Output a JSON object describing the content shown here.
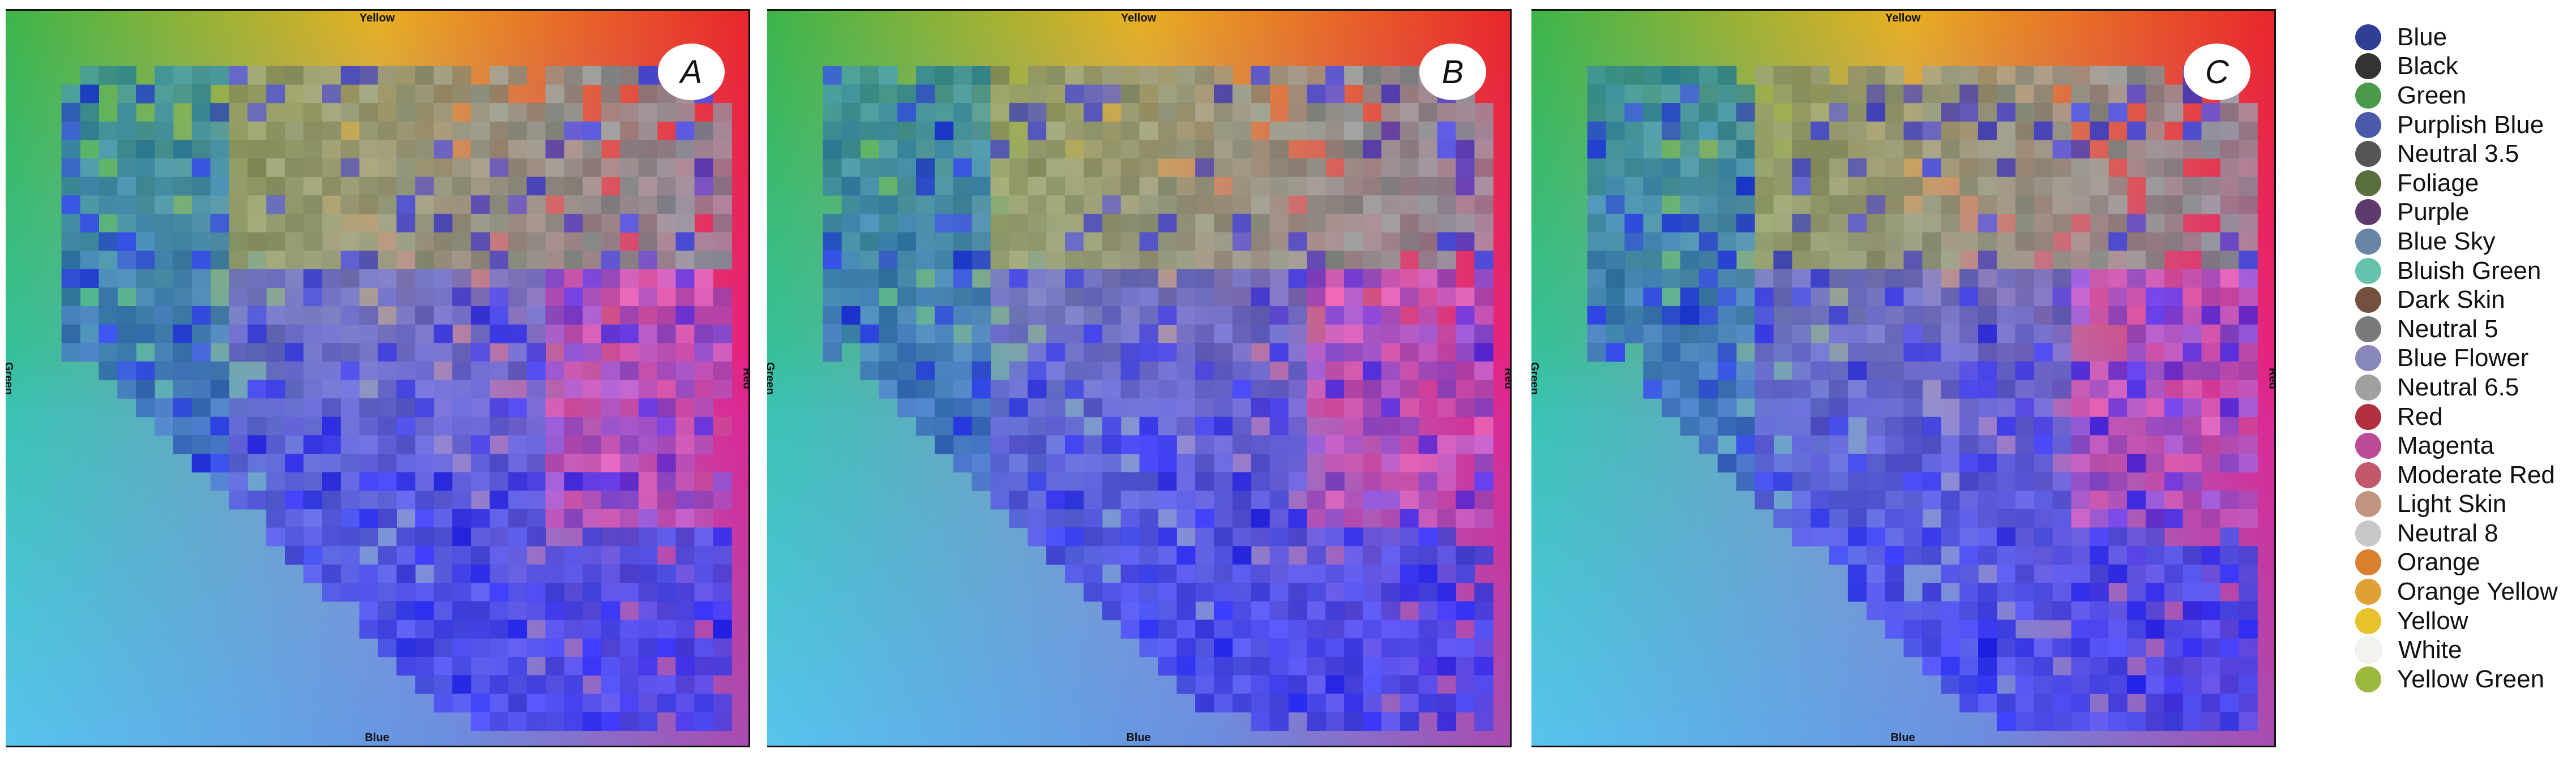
{
  "chart_data": [
    {
      "type": "heatmap",
      "title": "",
      "panel_label": "A",
      "edge_labels": {
        "top": "Yellow",
        "bottom": "Blue",
        "left": "Green",
        "right": "Red"
      },
      "background_hue_wheel": {
        "top": "#e8b020",
        "top_left": "#3cb44a",
        "top_right": "#e8262a",
        "right": "#e8208e",
        "left": "#34c4a8",
        "bottom_left": "#58c4ee",
        "bottom_right": "#a84cb0"
      },
      "grid_cols": 40,
      "grid_rows": 40,
      "cells_visible": true
    },
    {
      "type": "heatmap",
      "title": "",
      "panel_label": "B",
      "edge_labels": {
        "top": "Yellow",
        "bottom": "Blue",
        "left": "Green",
        "right": "Red"
      },
      "background_hue_wheel": {
        "top": "#e8b020",
        "top_left": "#3cb44a",
        "top_right": "#e8262a",
        "right": "#e8208e",
        "left": "#34c4a8",
        "bottom_left": "#58c4ee",
        "bottom_right": "#a84cb0"
      },
      "grid_cols": 40,
      "grid_rows": 40,
      "cells_visible": true
    },
    {
      "type": "heatmap",
      "title": "",
      "panel_label": "C",
      "edge_labels": {
        "top": "Yellow",
        "bottom": "Blue",
        "left": "Green",
        "right": "Red"
      },
      "background_hue_wheel": {
        "top": "#e8b020",
        "top_left": "#3cb44a",
        "top_right": "#e8262a",
        "right": "#e8208e",
        "left": "#34c4a8",
        "bottom_left": "#58c4ee",
        "bottom_right": "#a84cb0"
      },
      "grid_cols": 40,
      "grid_rows": 40,
      "cells_visible": true
    }
  ],
  "legend": {
    "placement": "right",
    "items": [
      {
        "label": "Blue",
        "color": "#2f3f96"
      },
      {
        "label": "Black",
        "color": "#333333"
      },
      {
        "label": "Green",
        "color": "#4a9a4c"
      },
      {
        "label": "Purplish Blue",
        "color": "#4a5aa8"
      },
      {
        "label": "Neutral 3.5",
        "color": "#555555"
      },
      {
        "label": "Foliage",
        "color": "#5a6e3e"
      },
      {
        "label": "Purple",
        "color": "#5e3a6e"
      },
      {
        "label": "Blue Sky",
        "color": "#6a84a8"
      },
      {
        "label": "Bluish Green",
        "color": "#66c2aa"
      },
      {
        "label": "Dark Skin",
        "color": "#74503e"
      },
      {
        "label": "Neutral 5",
        "color": "#7a7a7a"
      },
      {
        "label": "Blue Flower",
        "color": "#8888bb"
      },
      {
        "label": "Neutral 6.5",
        "color": "#a0a0a0"
      },
      {
        "label": "Red",
        "color": "#b03040"
      },
      {
        "label": "Magenta",
        "color": "#bb4a98"
      },
      {
        "label": "Moderate Red",
        "color": "#c2586a"
      },
      {
        "label": "Light Skin",
        "color": "#c29482"
      },
      {
        "label": "Neutral 8",
        "color": "#c8c8c8"
      },
      {
        "label": "Orange",
        "color": "#d8802e"
      },
      {
        "label": "Orange Yellow",
        "color": "#e0a038"
      },
      {
        "label": "Yellow",
        "color": "#e8c22a"
      },
      {
        "label": "White",
        "color": "#f2f2ee"
      },
      {
        "label": "Yellow Green",
        "color": "#9cb83e"
      }
    ]
  }
}
